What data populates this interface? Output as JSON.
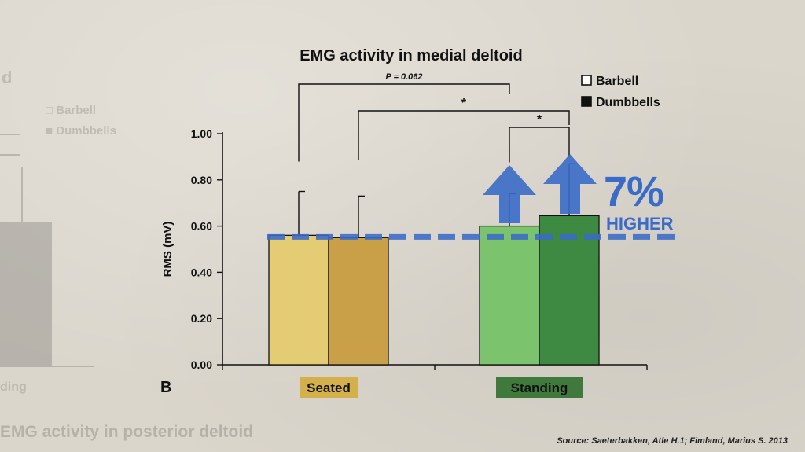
{
  "background_chart": {
    "title_fragment": "d",
    "legend": [
      "Barbell",
      "Dumbbells"
    ],
    "x_label_fragment": "ding",
    "caption": "EMG activity in posterior deltoid"
  },
  "panel_letter": "B",
  "source": "Source: Saeterbakken, Atle H.1; Fimland, Marius S. 2013",
  "overlay": {
    "percent": "7%",
    "word": "HIGHER",
    "color": "#3a6bc8"
  },
  "chart_data": {
    "type": "bar",
    "title": "EMG activity in medial deltoid",
    "ylabel": "RMS (mV)",
    "xlabel": "",
    "ylim": [
      0,
      1.0
    ],
    "yticks": [
      "0.00",
      "0.20",
      "0.40",
      "0.60",
      "0.80",
      "1.00"
    ],
    "categories": [
      "Seated",
      "Standing"
    ],
    "category_colors": [
      "#d4b04a",
      "#3f7a3c"
    ],
    "legend": [
      "Barbell",
      "Dumbbells"
    ],
    "series": [
      {
        "name": "Barbell",
        "values": [
          0.56,
          0.6
        ],
        "errors": [
          0.19,
          0.14
        ],
        "colors": [
          "#e3cc74",
          "#7bc46d"
        ]
      },
      {
        "name": "Dumbbells",
        "values": [
          0.55,
          0.645
        ],
        "errors": [
          0.18,
          0.225
        ],
        "colors": [
          "#c9a047",
          "#3f8a42"
        ]
      }
    ],
    "reference_line": 0.56,
    "annotations": [
      {
        "label": "P = 0.062",
        "from": "Seated Barbell",
        "to": "Standing Barbell"
      },
      {
        "label": "*",
        "from": "Seated Dumbbells",
        "to": "Standing Dumbbells"
      },
      {
        "label": "*",
        "from": "Standing Barbell",
        "to": "Standing Dumbbells"
      }
    ]
  }
}
